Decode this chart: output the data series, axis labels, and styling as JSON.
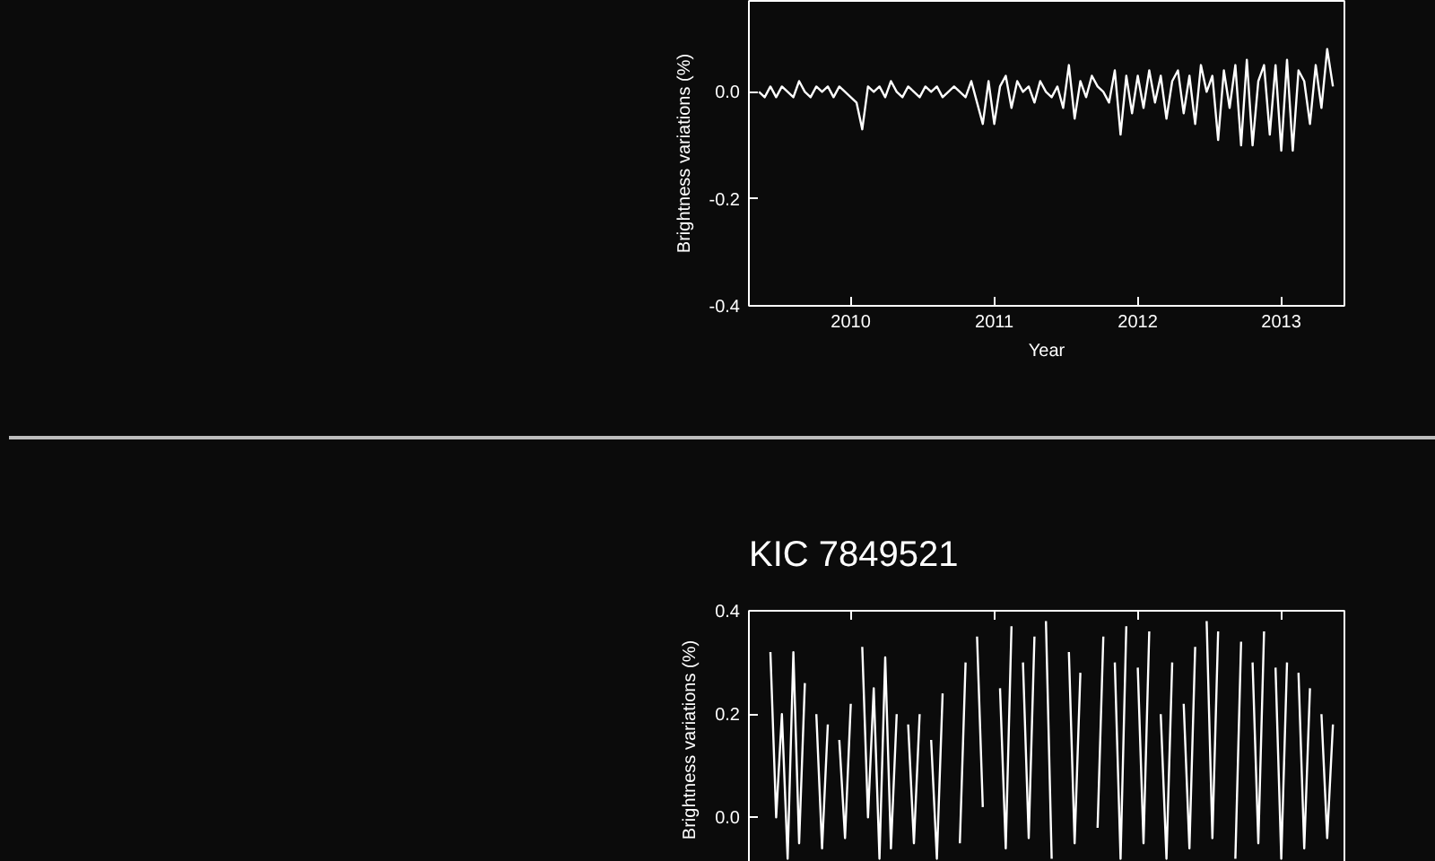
{
  "chart_data": [
    {
      "type": "line",
      "xlabel": "Year",
      "ylabel": "Brightness variations (%)",
      "xlim": [
        2009.29,
        2013.44
      ],
      "ylim": [
        -0.4,
        0.17
      ],
      "xticks": [
        2010,
        2011,
        2012,
        2013
      ],
      "yticks": [
        -0.4,
        -0.2,
        {
          "value": 0,
          "label": "0.0"
        }
      ],
      "grid": false,
      "x": [
        2009.36,
        2009.4,
        2009.44,
        2009.48,
        2009.52,
        2009.56,
        2009.6,
        2009.64,
        2009.68,
        2009.72,
        2009.76,
        2009.8,
        2009.84,
        2009.88,
        2009.92,
        2009.96,
        2010.0,
        2010.04,
        2010.08,
        2010.12,
        2010.16,
        2010.2,
        2010.24,
        2010.28,
        2010.32,
        2010.36,
        2010.4,
        2010.44,
        2010.48,
        2010.52,
        2010.56,
        2010.6,
        2010.64,
        2010.68,
        2010.72,
        2010.76,
        2010.8,
        2010.84,
        2010.88,
        2010.92,
        2010.96,
        2011.0,
        2011.04,
        2011.08,
        2011.12,
        2011.16,
        2011.2,
        2011.24,
        2011.28,
        2011.32,
        2011.36,
        2011.4,
        2011.44,
        2011.48,
        2011.52,
        2011.56,
        2011.6,
        2011.64,
        2011.68,
        2011.72,
        2011.76,
        2011.8,
        2011.84,
        2011.88,
        2011.92,
        2011.96,
        2012.0,
        2012.04,
        2012.08,
        2012.12,
        2012.16,
        2012.2,
        2012.24,
        2012.28,
        2012.32,
        2012.36,
        2012.4,
        2012.44,
        2012.48,
        2012.52,
        2012.56,
        2012.6,
        2012.64,
        2012.68,
        2012.72,
        2012.76,
        2012.8,
        2012.84,
        2012.88,
        2012.92,
        2012.96,
        2013.0,
        2013.04,
        2013.08,
        2013.12,
        2013.16,
        2013.2,
        2013.24,
        2013.28,
        2013.32,
        2013.36
      ],
      "series": [
        {
          "color": "#ffffff",
          "values": [
            0.0,
            -0.01,
            0.01,
            -0.01,
            0.01,
            0.0,
            -0.01,
            0.02,
            0.0,
            -0.01,
            0.01,
            0.0,
            0.01,
            -0.01,
            0.01,
            0.0,
            -0.01,
            -0.02,
            -0.07,
            0.01,
            0.0,
            0.01,
            -0.01,
            0.02,
            0.0,
            -0.01,
            0.01,
            0.0,
            -0.01,
            0.01,
            0.0,
            0.01,
            -0.01,
            0.0,
            0.01,
            0.0,
            -0.01,
            0.02,
            -0.02,
            -0.06,
            0.02,
            -0.06,
            0.01,
            0.03,
            -0.03,
            0.02,
            0.0,
            0.01,
            -0.02,
            0.02,
            0.0,
            -0.01,
            0.01,
            -0.03,
            0.05,
            -0.05,
            0.02,
            -0.01,
            0.03,
            0.01,
            0.0,
            -0.02,
            0.04,
            -0.08,
            0.03,
            -0.04,
            0.03,
            -0.03,
            0.04,
            -0.02,
            0.03,
            -0.05,
            0.02,
            0.04,
            -0.04,
            0.03,
            -0.06,
            0.05,
            0.0,
            0.03,
            -0.09,
            0.04,
            -0.03,
            0.05,
            -0.1,
            0.06,
            -0.1,
            0.02,
            0.05,
            -0.08,
            0.05,
            -0.11,
            0.06,
            -0.11,
            0.04,
            0.02,
            -0.06,
            0.05,
            -0.03,
            0.08,
            0.01
          ]
        }
      ]
    },
    {
      "type": "line",
      "title": "KIC 7849521",
      "ylabel": "Brightness variations (%)",
      "xlim": [
        2009.29,
        2013.44
      ],
      "ylim": [
        -0.1,
        0.4
      ],
      "xticks": [
        2010,
        2011,
        2012,
        2013
      ],
      "yticks": [
        {
          "value": 0,
          "label": "0.0"
        },
        0.2,
        0.4
      ],
      "grid": false,
      "tick_labels": "y",
      "x": [
        2009.44,
        2009.48,
        2009.52,
        2009.56,
        2009.6,
        2009.64,
        2009.68,
        2009.72,
        2009.76,
        2009.8,
        2009.84,
        2009.88,
        2009.92,
        2009.96,
        2010.0,
        2010.04,
        2010.08,
        2010.12,
        2010.16,
        2010.2,
        2010.24,
        2010.28,
        2010.32,
        2010.36,
        2010.4,
        2010.44,
        2010.48,
        2010.52,
        2010.56,
        2010.6,
        2010.64,
        2010.68,
        2010.72,
        2010.76,
        2010.8,
        2010.84,
        2010.88,
        2010.92,
        2010.96,
        2011.0,
        2011.04,
        2011.08,
        2011.12,
        2011.16,
        2011.2,
        2011.24,
        2011.28,
        2011.32,
        2011.36,
        2011.4,
        2011.44,
        2011.48,
        2011.52,
        2011.56,
        2011.6,
        2011.64,
        2011.68,
        2011.72,
        2011.76,
        2011.8,
        2011.84,
        2011.88,
        2011.92,
        2011.96,
        2012.0,
        2012.04,
        2012.08,
        2012.12,
        2012.16,
        2012.2,
        2012.24,
        2012.28,
        2012.32,
        2012.36,
        2012.4,
        2012.44,
        2012.48,
        2012.52,
        2012.56,
        2012.6,
        2012.64,
        2012.68,
        2012.72,
        2012.76,
        2012.8,
        2012.84,
        2012.88,
        2012.92,
        2012.96,
        2013.0,
        2013.04,
        2013.08,
        2013.12,
        2013.16,
        2013.2,
        2013.24,
        2013.28,
        2013.32,
        2013.36
      ],
      "series": [
        {
          "color": "#ffffff",
          "values": [
            0.32,
            0.0,
            0.2,
            -0.08,
            0.32,
            -0.05,
            0.26,
            null,
            0.2,
            -0.06,
            0.18,
            null,
            0.15,
            -0.04,
            0.22,
            null,
            0.33,
            0.0,
            0.25,
            -0.08,
            0.31,
            -0.06,
            0.2,
            null,
            0.18,
            -0.05,
            0.2,
            null,
            0.15,
            -0.08,
            0.24,
            null,
            null,
            -0.05,
            0.3,
            null,
            0.35,
            0.02,
            null,
            null,
            0.25,
            -0.06,
            0.37,
            null,
            0.3,
            -0.04,
            0.35,
            null,
            0.38,
            -0.08,
            null,
            null,
            0.32,
            -0.05,
            0.28,
            null,
            null,
            -0.02,
            0.35,
            null,
            0.3,
            -0.08,
            0.37,
            null,
            0.29,
            -0.05,
            0.36,
            null,
            0.2,
            -0.08,
            0.3,
            null,
            0.22,
            -0.06,
            0.33,
            null,
            0.38,
            -0.04,
            0.36,
            null,
            null,
            -0.08,
            0.34,
            null,
            0.3,
            -0.05,
            0.36,
            null,
            0.29,
            -0.08,
            0.3,
            null,
            0.28,
            -0.06,
            0.25,
            null,
            0.2,
            -0.04,
            0.18
          ]
        }
      ]
    }
  ]
}
